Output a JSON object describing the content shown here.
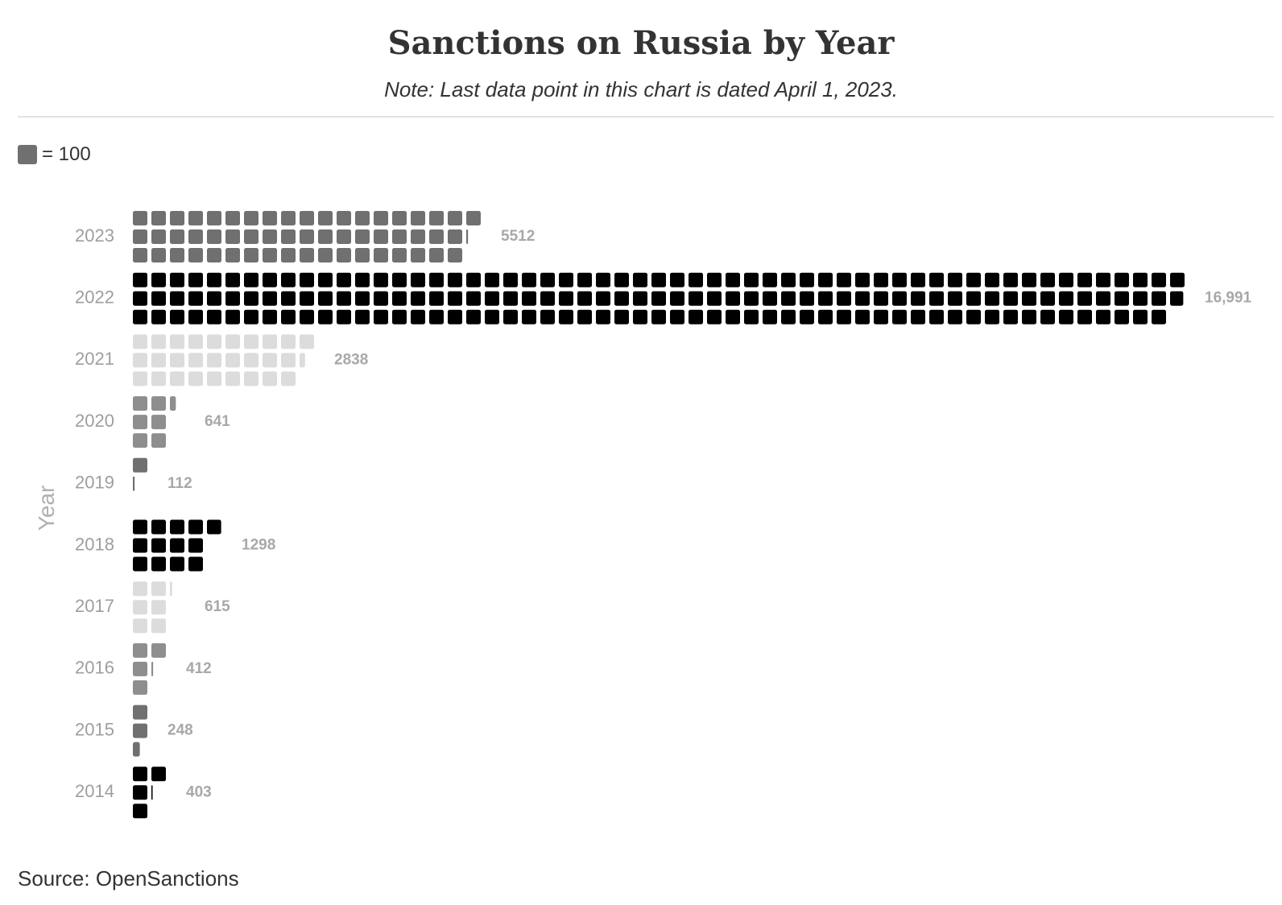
{
  "chart_data": {
    "type": "waffle",
    "title": "Sanctions on Russia by Year",
    "subtitle": "Note: Last data point in this chart is dated April 1, 2023.",
    "ylabel": "Year",
    "unit_value": 100,
    "legend_label": "= 100",
    "orientation": "horizontal",
    "rows_per_bar": 3,
    "categories": [
      "2023",
      "2022",
      "2021",
      "2020",
      "2019",
      "2018",
      "2017",
      "2016",
      "2015",
      "2014"
    ],
    "values": [
      5512,
      16991,
      2838,
      641,
      112,
      1298,
      615,
      412,
      248,
      403
    ],
    "value_labels": [
      "5512",
      "16,991",
      "2838",
      "641",
      "112",
      "1298",
      "615",
      "412",
      "248",
      "403"
    ],
    "colors": [
      "#707070",
      "#000000",
      "#dcdcdc",
      "#8e8e8e",
      "#707070",
      "#000000",
      "#dcdcdc",
      "#8e8e8e",
      "#707070",
      "#000000"
    ],
    "source": "Source: OpenSanctions"
  }
}
